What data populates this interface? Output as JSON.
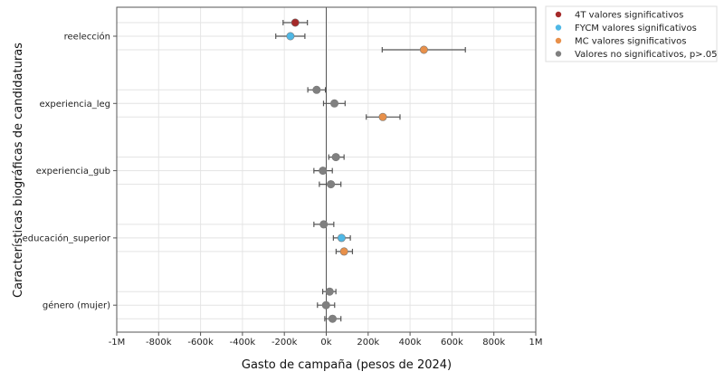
{
  "chart_data": {
    "type": "scatter",
    "subtype": "coefficient-plot-with-error-bars",
    "xlabel": "Gasto de campaña (pesos de 2024)",
    "ylabel": "Características biográficas de candidaturas",
    "xlim": [
      -1000000,
      1000000
    ],
    "xticks": [
      -1000000,
      -800000,
      -600000,
      -400000,
      -200000,
      0,
      200000,
      400000,
      600000,
      800000,
      1000000
    ],
    "xtick_labels": [
      "-1M",
      "-800k",
      "-600k",
      "-400k",
      "-200k",
      "0k",
      "200k",
      "400k",
      "600k",
      "800k",
      "1M"
    ],
    "categories": [
      "reelección",
      "experiencia_leg",
      "experiencia_gub",
      "educación_superior",
      "género (mujer)"
    ],
    "grid": true,
    "legend_placement": "outside-top-right",
    "legend": [
      {
        "label": "4T valores significativos",
        "color": "#a52a2a"
      },
      {
        "label": "FYCM valores significativos",
        "color": "#4fb8e6"
      },
      {
        "label": "MC valores significativos",
        "color": "#e8904a"
      },
      {
        "label": "Valores no significativos, p>.05",
        "color": "#808080"
      }
    ],
    "points": [
      {
        "category": "reelección",
        "slot": 0,
        "estimate": -148000,
        "ci": [
          -206000,
          -90000
        ],
        "group": 0
      },
      {
        "category": "reelección",
        "slot": 1,
        "estimate": -171000,
        "ci": [
          -241000,
          -102000
        ],
        "group": 1
      },
      {
        "category": "reelección",
        "slot": 2,
        "estimate": 466000,
        "ci": [
          267000,
          664000
        ],
        "group": 2
      },
      {
        "category": "experiencia_leg",
        "slot": 0,
        "estimate": -46000,
        "ci": [
          -88000,
          -4000
        ],
        "group": 3
      },
      {
        "category": "experiencia_leg",
        "slot": 1,
        "estimate": 39000,
        "ci": [
          -13000,
          90000
        ],
        "group": 3
      },
      {
        "category": "experiencia_leg",
        "slot": 2,
        "estimate": 270000,
        "ci": [
          191000,
          352000
        ],
        "group": 2
      },
      {
        "category": "experiencia_gub",
        "slot": 0,
        "estimate": 46000,
        "ci": [
          12000,
          85000
        ],
        "group": 3
      },
      {
        "category": "experiencia_gub",
        "slot": 1,
        "estimate": -16000,
        "ci": [
          -59000,
          29000
        ],
        "group": 3
      },
      {
        "category": "experiencia_gub",
        "slot": 2,
        "estimate": 22000,
        "ci": [
          -33000,
          70000
        ],
        "group": 3
      },
      {
        "category": "educación_superior",
        "slot": 0,
        "estimate": -12000,
        "ci": [
          -59000,
          36000
        ],
        "group": 3
      },
      {
        "category": "educación_superior",
        "slot": 1,
        "estimate": 73000,
        "ci": [
          34000,
          115000
        ],
        "group": 1
      },
      {
        "category": "educación_superior",
        "slot": 2,
        "estimate": 85000,
        "ci": [
          47000,
          125000
        ],
        "group": 2
      },
      {
        "category": "género (mujer)",
        "slot": 0,
        "estimate": 16000,
        "ci": [
          -17000,
          46000
        ],
        "group": 3
      },
      {
        "category": "género (mujer)",
        "slot": 1,
        "estimate": -1000,
        "ci": [
          -42000,
          40000
        ],
        "group": 3
      },
      {
        "category": "género (mujer)",
        "slot": 2,
        "estimate": 30000,
        "ci": [
          -7000,
          70000
        ],
        "group": 3
      }
    ]
  }
}
